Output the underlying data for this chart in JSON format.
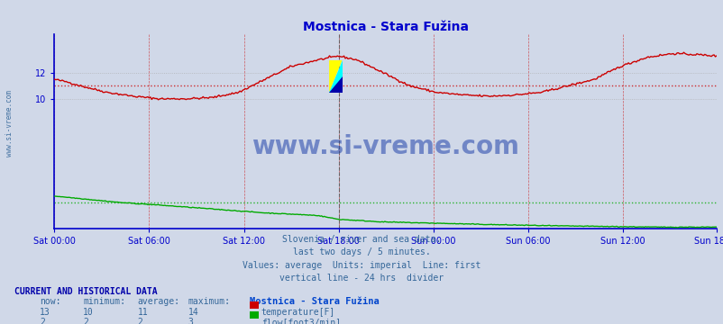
{
  "title": "Mostnica - Stara Fužina",
  "title_color": "#0000cc",
  "bg_color": "#d0d8e8",
  "plot_bg_color": "#d0d8e8",
  "x_tick_labels": [
    "Sat 00:00",
    "Sat 06:00",
    "Sat 12:00",
    "Sat 18:00",
    "Sun 00:00",
    "Sun 06:00",
    "Sun 12:00",
    "Sun 18:00"
  ],
  "x_tick_positions": [
    0,
    72,
    144,
    216,
    288,
    360,
    432,
    503
  ],
  "y_ticks": [
    10,
    12
  ],
  "ylim": [
    0,
    15
  ],
  "total_points": 504,
  "divider_x": 216,
  "temp_avg": 11.0,
  "flow_avg": 2.0,
  "temp_color": "#cc0000",
  "flow_color": "#00aa00",
  "axis_color": "#0000cc",
  "grid_color_v": "#cc0000",
  "grid_color_h": "#aaaaaa",
  "watermark": "www.si-vreme.com",
  "watermark_color": "#2244aa",
  "subtitle_lines": [
    "Slovenia / river and sea data.",
    "last two days / 5 minutes.",
    "Values: average  Units: imperial  Line: first",
    "vertical line - 24 hrs  divider"
  ],
  "subtitle_color": "#336699",
  "footer_title": "CURRENT AND HISTORICAL DATA",
  "footer_color": "#0000aa",
  "col_headers": [
    "now:",
    "minimum:",
    "average:",
    "maximum:",
    "Mostnica - Stara Fužina"
  ],
  "temp_row": [
    "13",
    "10",
    "11",
    "14",
    "temperature[F]"
  ],
  "flow_row": [
    "2",
    "2",
    "2",
    "3",
    "flow[foot3/min]"
  ]
}
